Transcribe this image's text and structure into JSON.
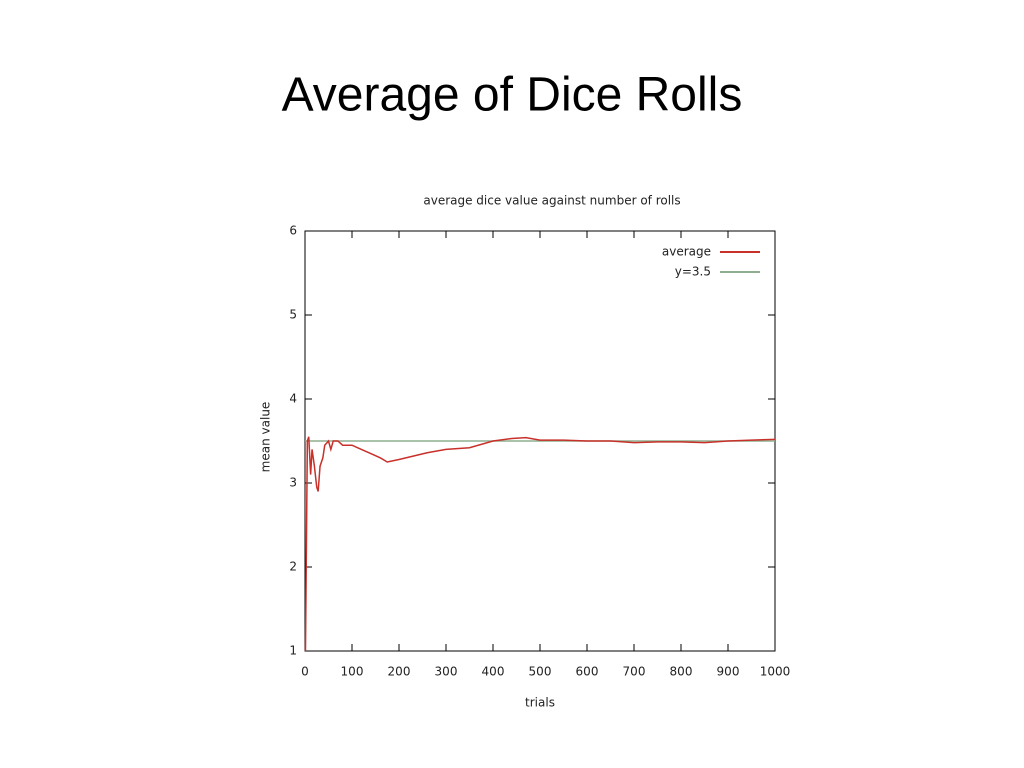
{
  "slide": {
    "title": "Average of Dice Rolls"
  },
  "chart_data": {
    "type": "line",
    "title": "average dice value against number of rolls",
    "xlabel": "trials",
    "ylabel": "mean value",
    "xlim": [
      0,
      1000
    ],
    "ylim": [
      1,
      6
    ],
    "xticks": [
      0,
      100,
      200,
      300,
      400,
      500,
      600,
      700,
      800,
      900,
      1000
    ],
    "yticks": [
      1,
      2,
      3,
      4,
      5,
      6
    ],
    "legend": "top-right",
    "series": [
      {
        "name": "average",
        "color": "#c8302a",
        "x": [
          1,
          5,
          8,
          12,
          15,
          20,
          25,
          28,
          32,
          38,
          42,
          50,
          55,
          60,
          70,
          80,
          90,
          100,
          120,
          140,
          160,
          175,
          200,
          230,
          260,
          300,
          350,
          400,
          440,
          470,
          500,
          550,
          600,
          650,
          700,
          750,
          800,
          850,
          900,
          950,
          1000
        ],
        "values": [
          1,
          3.5,
          3.55,
          3.1,
          3.4,
          3.2,
          2.95,
          2.9,
          3.2,
          3.3,
          3.45,
          3.5,
          3.4,
          3.5,
          3.5,
          3.45,
          3.45,
          3.45,
          3.4,
          3.35,
          3.3,
          3.25,
          3.28,
          3.32,
          3.36,
          3.4,
          3.42,
          3.5,
          3.53,
          3.54,
          3.51,
          3.51,
          3.5,
          3.5,
          3.48,
          3.49,
          3.49,
          3.48,
          3.5,
          3.51,
          3.52
        ]
      },
      {
        "name": "y=3.5",
        "color": "#8fae8f",
        "x": [
          0,
          1000
        ],
        "values": [
          3.5,
          3.5
        ]
      }
    ]
  }
}
